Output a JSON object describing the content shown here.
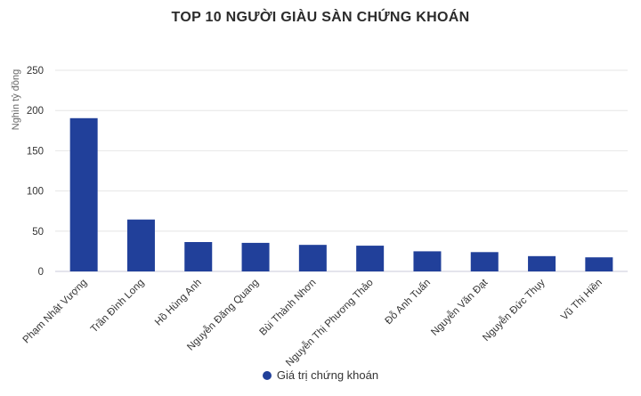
{
  "chart_data": {
    "type": "bar",
    "title": "TOP 10 NGƯỜI GIÀU SÀN CHỨNG KHOÁN",
    "ylabel": "Nghìn tỷ đồng",
    "xlabel": "",
    "categories": [
      "Phạm Nhật Vượng",
      "Trần Đình Long",
      "Hồ Hùng Anh",
      "Nguyễn Đăng Quang",
      "Bùi Thành Nhơn",
      "Nguyễn Thị Phương Thảo",
      "Đỗ Anh Tuấn",
      "Nguyễn Văn Đạt",
      "Nguyễn Đức Thụy",
      "Vũ Thị Hiền"
    ],
    "series": [
      {
        "name": "Giá trị chứng khoán",
        "values": [
          190.5,
          64.5,
          36.5,
          35.5,
          33,
          32,
          25,
          24,
          19,
          17.5
        ],
        "color": "#21409a"
      }
    ],
    "ylim": [
      0,
      250
    ],
    "yticks": [
      0,
      50,
      100,
      150,
      200,
      250
    ],
    "grid": true,
    "legend": "bottom-center"
  }
}
